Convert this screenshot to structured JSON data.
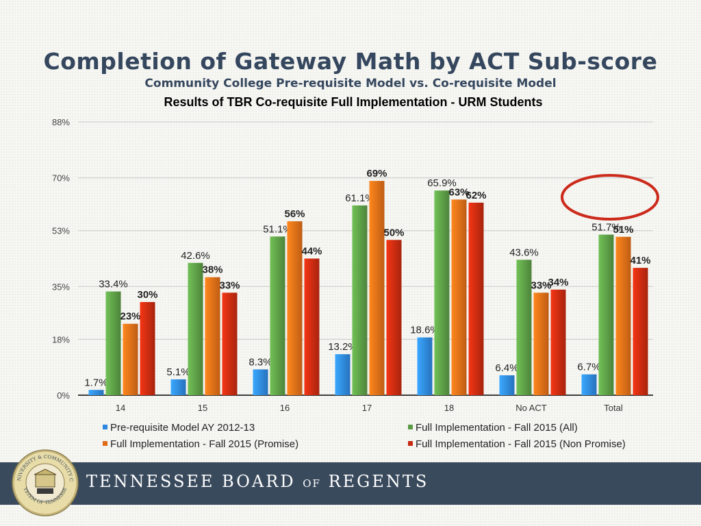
{
  "header": {
    "title": "Completion of Gateway Math by ACT Sub-score",
    "subtitle": "Community College Pre-requisite Model vs. Co-requisite Model"
  },
  "chart_data": {
    "type": "bar",
    "title": "Results of TBR Co-requisite Full Implementation - URM Students",
    "categories": [
      "14",
      "15",
      "16",
      "17",
      "18",
      "No ACT",
      "Total"
    ],
    "ylim": [
      0,
      88
    ],
    "yticks": [
      0,
      18,
      35,
      53,
      70,
      88
    ],
    "ytick_labels": [
      "0%",
      "18%",
      "35%",
      "53%",
      "70%",
      "88%"
    ],
    "grid": true,
    "legend_position": "bottom",
    "series": [
      {
        "name": "Pre-requisite Model AY 2012-13",
        "color": "#2e86de",
        "values": [
          1.7,
          5.1,
          8.3,
          13.2,
          18.6,
          6.4,
          6.7
        ],
        "labels": [
          "1.7%",
          "5.1%",
          "8.3%",
          "13.2%",
          "18.6%",
          "6.4%",
          "6.7%"
        ]
      },
      {
        "name": "Full Implementation - Fall 2015 (All)",
        "color": "#5a9a45",
        "values": [
          33.4,
          42.6,
          51.1,
          61.1,
          65.9,
          43.6,
          51.7
        ],
        "labels": [
          "33.4%",
          "42.6%",
          "51.1%",
          "61.1%",
          "65.9%",
          "43.6%",
          "51.7%"
        ]
      },
      {
        "name": "Full Implementation - Fall 2015 (Promise)",
        "color": "#e06c17",
        "values": [
          23,
          38,
          56,
          69,
          63,
          33,
          51
        ],
        "labels": [
          "23%",
          "38%",
          "56%",
          "69%",
          "63%",
          "33%",
          "51%"
        ]
      },
      {
        "name": "Full Implementation - Fall 2015 (Non Promise)",
        "color": "#c42a10",
        "values": [
          30,
          33,
          44,
          50,
          62,
          34,
          41
        ],
        "labels": [
          "30%",
          "33%",
          "44%",
          "50%",
          "62%",
          "34%",
          "41%"
        ]
      }
    ],
    "annotation": "red-ellipse-around-total"
  },
  "footer": {
    "org_part1": "TENNESSEE BOARD",
    "org_of": "OF",
    "org_part2": "REGENTS",
    "seal_text_top": "STATE UNIVERSITY & COMMUNITY COLLEGE",
    "seal_text_bottom": "SYSTEM OF TENNESSEE"
  },
  "colors": {
    "title": "#35475e",
    "footer_band": "#3a4a5d",
    "annotation": "#cc2a1b"
  }
}
